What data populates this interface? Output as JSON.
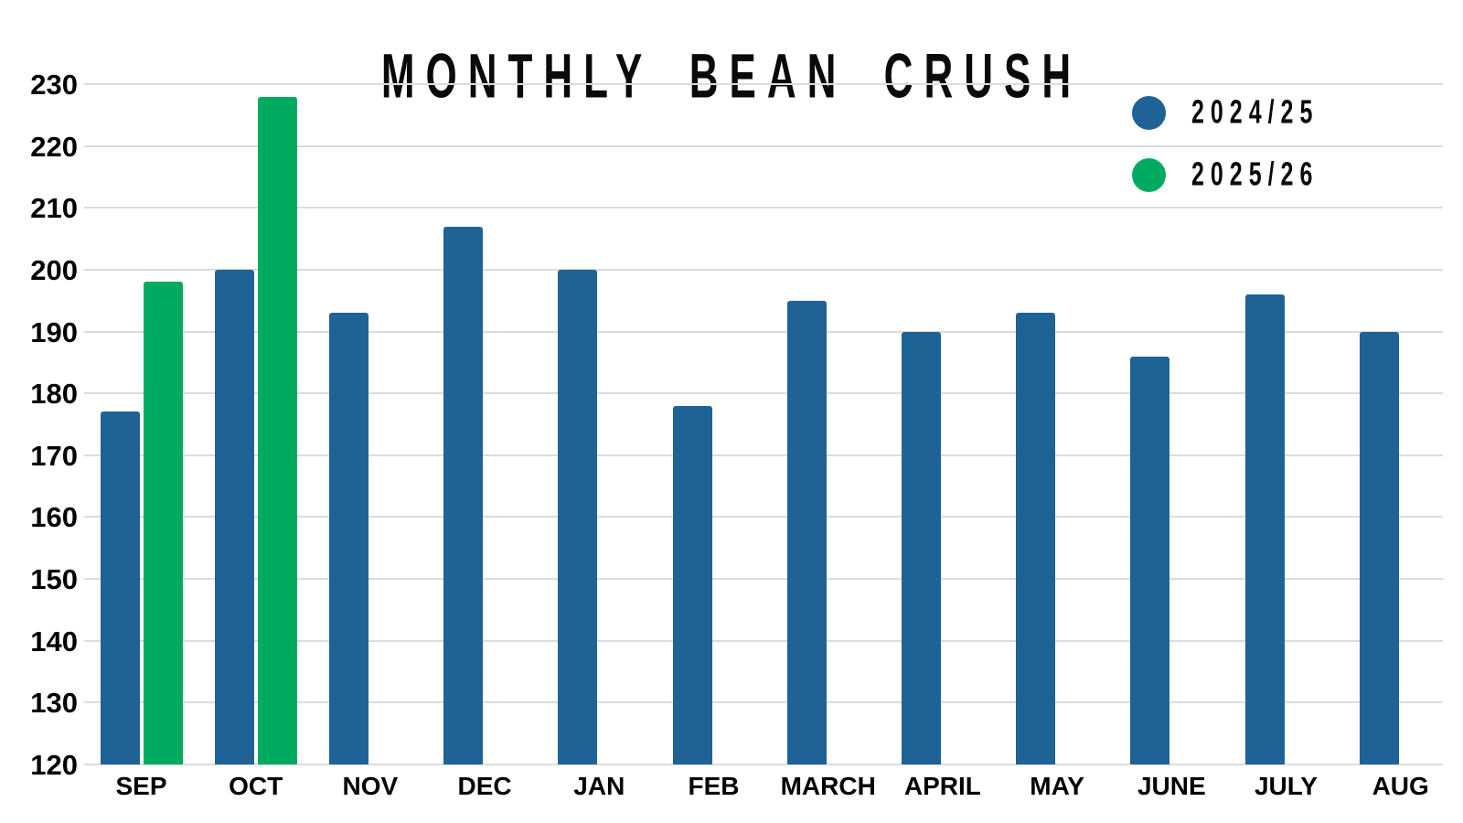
{
  "chart_data": {
    "type": "bar",
    "title": "MONTHLY BEAN CRUSH",
    "categories": [
      "SEP",
      "OCT",
      "NOV",
      "DEC",
      "JAN",
      "FEB",
      "MARCH",
      "APRIL",
      "MAY",
      "JUNE",
      "JULY",
      "AUG"
    ],
    "series": [
      {
        "name": "2024/25",
        "color": "#1F6396",
        "values": [
          177,
          200,
          193,
          207,
          200,
          178,
          195,
          190,
          193,
          186,
          196,
          190
        ]
      },
      {
        "name": "2025/26",
        "color": "#00AB60",
        "values": [
          198,
          228,
          null,
          null,
          null,
          null,
          null,
          null,
          null,
          null,
          null,
          null
        ]
      }
    ],
    "ylim": [
      120,
      230
    ],
    "ytick_step": 10,
    "yticks": [
      120,
      130,
      140,
      150,
      160,
      170,
      180,
      190,
      200,
      210,
      220,
      230
    ],
    "grid": true,
    "legend_position": "top-right",
    "background": "#ffffff",
    "gridline_color": "#dcdcdc"
  }
}
